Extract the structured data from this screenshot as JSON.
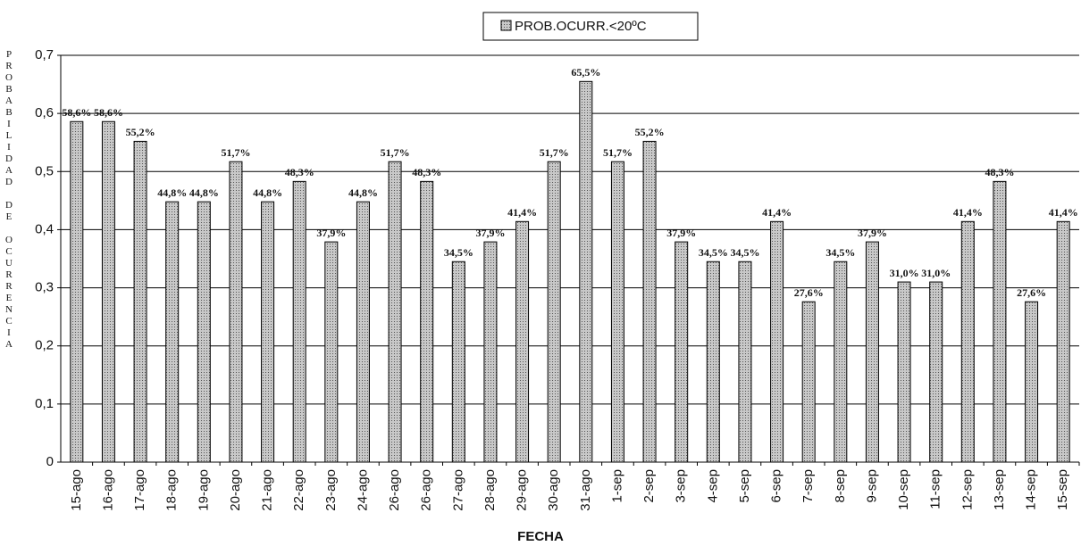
{
  "chart_data": {
    "type": "bar",
    "legend": "PROB.OCURR.<20ºC",
    "y_label": "PROBABILIDAD DE OCURRENCIA",
    "x_label": "FECHA",
    "categories": [
      "15-ago",
      "16-ago",
      "17-ago",
      "18-ago",
      "19-ago",
      "20-ago",
      "21-ago",
      "22-ago",
      "23-ago",
      "24-ago",
      "26-ago",
      "26-ago",
      "27-ago",
      "28-ago",
      "29-ago",
      "30-ago",
      "31-ago",
      "1-sep",
      "2-sep",
      "3-sep",
      "4-sep",
      "5-sep",
      "6-sep",
      "7-sep",
      "8-sep",
      "9-sep",
      "10-sep",
      "11-sep",
      "12-sep",
      "13-sep",
      "14-sep",
      "15-sep"
    ],
    "values": [
      0.586,
      0.586,
      0.552,
      0.448,
      0.448,
      0.517,
      0.448,
      0.483,
      0.379,
      0.448,
      0.517,
      0.483,
      0.345,
      0.379,
      0.414,
      0.517,
      0.655,
      0.517,
      0.552,
      0.379,
      0.345,
      0.345,
      0.414,
      0.276,
      0.345,
      0.379,
      0.31,
      0.31,
      0.414,
      0.483,
      0.276,
      0.414
    ],
    "value_labels": [
      "58,6%",
      "58,6%",
      "55,2%",
      "44,8%",
      "44,8%",
      "51,7%",
      "44,8%",
      "48,3%",
      "37,9%",
      "44,8%",
      "51,7%",
      "48,3%",
      "34,5%",
      "37,9%",
      "41,4%",
      "51,7%",
      "65,5%",
      "51,7%",
      "55,2%",
      "37,9%",
      "34,5%",
      "34,5%",
      "41,4%",
      "27,6%",
      "34,5%",
      "37,9%",
      "31,0%",
      "31,0%",
      "41,4%",
      "48,3%",
      "27,6%",
      "41,4%"
    ],
    "color": "#a8a8a8",
    "ylim": [
      0,
      0.7
    ],
    "yticks": [
      0,
      {
        "value": 0.1,
        "label": "0,1"
      },
      {
        "value": 0.2,
        "label": "0,2"
      },
      {
        "value": 0.3,
        "label": "0,3"
      },
      {
        "value": 0.4,
        "label": "0,4"
      },
      {
        "value": 0.5,
        "label": "0,5"
      },
      {
        "value": 0.6,
        "label": "0,6"
      },
      {
        "value": 0.7,
        "label": "0,7"
      }
    ],
    "grid": true
  }
}
